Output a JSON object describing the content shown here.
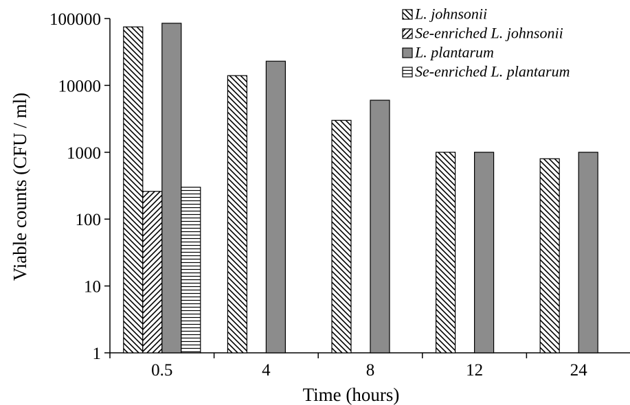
{
  "chart_data": {
    "type": "bar",
    "title": "",
    "xlabel": "Time (hours)",
    "ylabel": "Viable counts (CFU / ml)",
    "yscale": "log",
    "ylim": [
      1,
      100000
    ],
    "yticks": [
      "1",
      "10",
      "100",
      "1000",
      "10000",
      "100000"
    ],
    "grid": false,
    "legend_position": "top-right",
    "categories": [
      "0.5",
      "4",
      "8",
      "12",
      "24"
    ],
    "series": [
      {
        "name": "L. johnsonii",
        "pattern": "diagonal-hatch-backslash",
        "color": "#000000",
        "values": [
          75000,
          14000,
          3000,
          1000,
          800
        ]
      },
      {
        "name": "Se-enriched L. johnsonii",
        "pattern": "diagonal-hatch-slash",
        "color": "#000000",
        "values": [
          260,
          null,
          null,
          null,
          null
        ]
      },
      {
        "name": "L. plantarum",
        "pattern": "solid",
        "color": "#8c8c8c",
        "values": [
          85000,
          23000,
          6000,
          1000,
          1000
        ]
      },
      {
        "name": "Se-enriched L. plantarum",
        "pattern": "horizontal-hatch",
        "color": "#000000",
        "values": [
          300,
          null,
          null,
          null,
          null
        ]
      }
    ]
  }
}
